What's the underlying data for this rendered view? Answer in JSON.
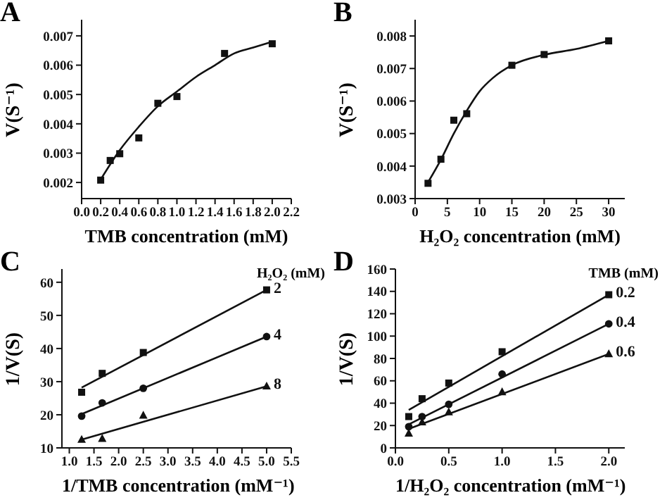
{
  "chart_data": [
    {
      "type": "scatter",
      "title": "A",
      "xlabel": "TMB concentration (mM)",
      "ylabel": "V(S⁻¹)",
      "xlim": [
        0,
        2.2
      ],
      "xticks": [
        {
          "value": 0,
          "label": "0.0"
        },
        0.2,
        0.4,
        0.6,
        0.8,
        {
          "value": 1,
          "label": "1.0"
        },
        1.2,
        1.4,
        1.6,
        1.8,
        {
          "value": 2,
          "label": "2.0"
        },
        2.2
      ],
      "ylim": [
        0.00145,
        0.00755
      ],
      "yticks": [
        0.002,
        0.003,
        0.004,
        0.005,
        0.006,
        0.007
      ],
      "series": [
        {
          "color": "#111111",
          "marker": "square",
          "x": [
            0.2,
            0.3,
            0.4,
            0.6,
            0.8,
            1.0,
            1.5,
            2.0
          ],
          "values": [
            0.00208,
            0.00275,
            0.00298,
            0.00352,
            0.0047,
            0.00493,
            0.0064,
            0.00673
          ]
        },
        {
          "type": "line",
          "color": "#111111",
          "x": [
            0.2,
            0.4,
            0.6,
            0.8,
            1.0,
            1.2,
            1.4,
            1.6,
            1.8,
            2.0
          ],
          "values": [
            0.0021,
            0.0031,
            0.0039,
            0.0046,
            0.0051,
            0.0056,
            0.006,
            0.0064,
            0.0066,
            0.0068
          ]
        }
      ]
    },
    {
      "type": "scatter",
      "title": "B",
      "xlabel": "H₂O₂ concentration (mM)",
      "ylabel": "V(S⁻¹)",
      "xlim": [
        0,
        32.5
      ],
      "xticks": [
        0,
        5,
        10,
        15,
        20,
        25,
        30
      ],
      "ylim": [
        0.003,
        0.0085
      ],
      "yticks": [
        0.003,
        0.004,
        0.005,
        0.006,
        0.007,
        0.008
      ],
      "series": [
        {
          "color": "#111111",
          "marker": "square",
          "x": [
            2,
            4,
            6,
            8,
            15,
            20,
            30
          ],
          "values": [
            0.00347,
            0.00421,
            0.00541,
            0.00561,
            0.0071,
            0.00743,
            0.00785
          ]
        },
        {
          "type": "line",
          "color": "#111111",
          "x": [
            2,
            4,
            6,
            8,
            10,
            12,
            15,
            20,
            25,
            30
          ],
          "values": [
            0.0035,
            0.0042,
            0.005,
            0.0057,
            0.0063,
            0.0067,
            0.0071,
            0.00742,
            0.0076,
            0.00785
          ]
        }
      ]
    },
    {
      "type": "scatter",
      "title": "C",
      "xlabel": "1/TMB concentration (mM⁻¹)",
      "ylabel": "1/V(S)",
      "legend_title": "H₂O₂ (mM)",
      "xlim": [
        0.85,
        5.5
      ],
      "xticks": [
        {
          "value": 1,
          "label": "1.0"
        },
        1.5,
        {
          "value": 2,
          "label": "2.0"
        },
        2.5,
        {
          "value": 3,
          "label": "3.0"
        },
        3.5,
        {
          "value": 4,
          "label": "4.0"
        },
        4.5,
        {
          "value": 5,
          "label": "5.0"
        },
        5.5
      ],
      "ylim": [
        10,
        64
      ],
      "yticks": [
        10,
        20,
        30,
        40,
        50,
        60
      ],
      "series": [
        {
          "name": "2",
          "color": "#111111",
          "marker": "square",
          "x": [
            1.25,
            1.667,
            2.5,
            5
          ],
          "values": [
            26.8,
            32.5,
            38.8,
            57.7
          ]
        },
        {
          "type": "line",
          "color": "#111111",
          "x": [
            1.25,
            5
          ],
          "values": [
            28.2,
            57.7
          ]
        },
        {
          "name": "4",
          "color": "#111111",
          "marker": "circle",
          "x": [
            1.25,
            1.667,
            2.5,
            5
          ],
          "values": [
            19.6,
            23.6,
            28,
            43.6
          ]
        },
        {
          "type": "line",
          "color": "#111111",
          "x": [
            1.25,
            5
          ],
          "values": [
            20.2,
            43.6
          ]
        },
        {
          "name": "8",
          "color": "#111111",
          "marker": "triangle",
          "x": [
            1.25,
            1.667,
            2.5,
            5
          ],
          "values": [
            12.5,
            12.8,
            19.8,
            28.6
          ]
        },
        {
          "type": "line",
          "color": "#111111",
          "x": [
            1.25,
            5
          ],
          "values": [
            12.5,
            28.6
          ]
        }
      ]
    },
    {
      "type": "scatter",
      "title": "D",
      "xlabel": "1/H₂O₂ concentration (mM⁻¹)",
      "ylabel": "1/V(S)",
      "legend_title": "TMB (mM)",
      "xlim": [
        0,
        2.15
      ],
      "xticks": [
        {
          "value": 0,
          "label": "0.0"
        },
        0.5,
        {
          "value": 1,
          "label": "1.0"
        },
        1.5,
        {
          "value": 2,
          "label": "2.0"
        }
      ],
      "ylim": [
        0,
        160
      ],
      "yticks": [
        0,
        20,
        40,
        60,
        80,
        100,
        120,
        140,
        160
      ],
      "series": [
        {
          "name": "0.2",
          "color": "#111111",
          "marker": "square",
          "x": [
            0.125,
            0.25,
            0.5,
            1,
            2
          ],
          "values": [
            28,
            44,
            58,
            86,
            137
          ]
        },
        {
          "type": "line",
          "color": "#111111",
          "x": [
            0.125,
            2
          ],
          "values": [
            34,
            137
          ]
        },
        {
          "name": "0.4",
          "color": "#111111",
          "marker": "circle",
          "x": [
            0.125,
            0.25,
            0.5,
            1,
            2
          ],
          "values": [
            19,
            28,
            39,
            66,
            111
          ]
        },
        {
          "type": "line",
          "color": "#111111",
          "x": [
            0.125,
            2
          ],
          "values": [
            21,
            111
          ]
        },
        {
          "name": "0.6",
          "color": "#111111",
          "marker": "triangle",
          "x": [
            0.125,
            0.25,
            0.5,
            1,
            2
          ],
          "values": [
            13,
            23,
            32,
            50,
            84
          ]
        },
        {
          "type": "line",
          "color": "#111111",
          "x": [
            0.125,
            2
          ],
          "values": [
            17,
            84
          ]
        }
      ]
    }
  ]
}
